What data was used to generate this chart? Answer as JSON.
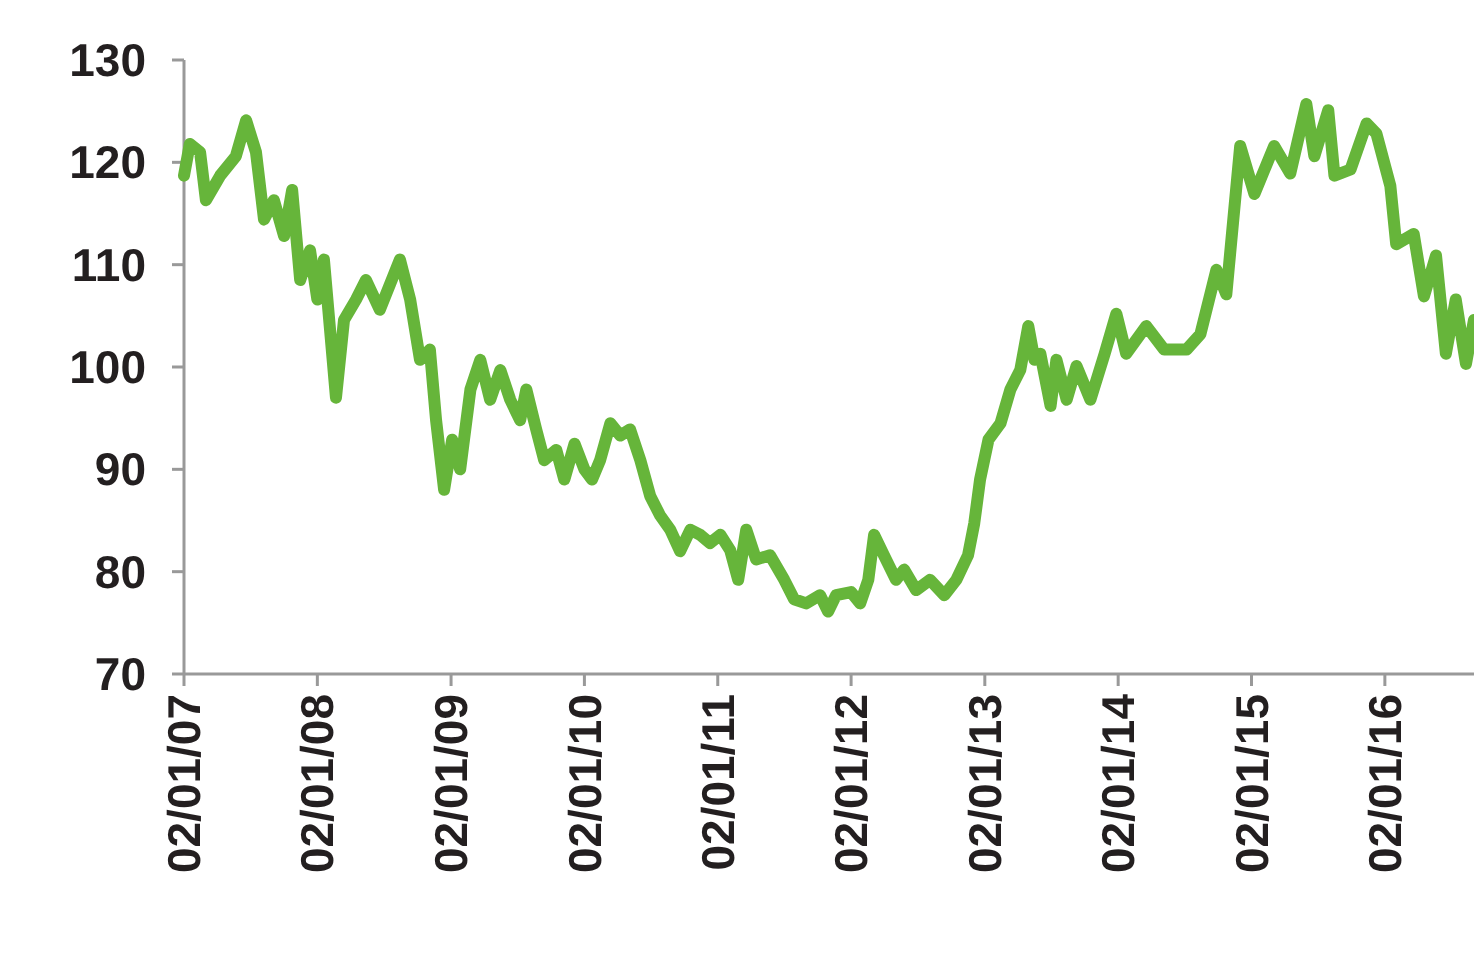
{
  "chart_data": {
    "type": "line",
    "x": [
      "2007-01-02",
      "2007-01-18",
      "2007-02-15",
      "2007-03-03",
      "2007-04-11",
      "2007-05-24",
      "2007-06-21",
      "2007-07-18",
      "2007-08-09",
      "2007-09-05",
      "2007-10-03",
      "2007-10-25",
      "2007-11-16",
      "2007-12-13",
      "2008-01-02",
      "2008-01-20",
      "2008-02-22",
      "2008-03-15",
      "2008-04-17",
      "2008-05-14",
      "2008-06-21",
      "2008-08-15",
      "2008-09-12",
      "2008-10-09",
      "2008-11-05",
      "2008-11-22",
      "2008-12-14",
      "2009-01-05",
      "2009-01-27",
      "2009-02-24",
      "2009-03-23",
      "2009-04-19",
      "2009-05-17",
      "2009-06-13",
      "2009-07-10",
      "2009-07-27",
      "2009-08-23",
      "2009-09-14",
      "2009-10-17",
      "2009-11-08",
      "2009-12-06",
      "2010-01-02",
      "2010-01-23",
      "2010-02-14",
      "2010-03-14",
      "2010-04-10",
      "2010-05-07",
      "2010-06-04",
      "2010-07-01",
      "2010-07-28",
      "2010-08-25",
      "2010-09-21",
      "2010-10-19",
      "2010-11-15",
      "2010-12-12",
      "2011-01-09",
      "2011-02-05",
      "2011-02-27",
      "2011-03-21",
      "2011-04-17",
      "2011-05-25",
      "2011-07-03",
      "2011-07-30",
      "2011-09-01",
      "2011-10-09",
      "2011-10-31",
      "2011-11-22",
      "2012-01-02",
      "2012-01-27",
      "2012-02-18",
      "2012-03-05",
      "2012-04-01",
      "2012-05-04",
      "2012-05-26",
      "2012-06-28",
      "2012-08-05",
      "2012-09-13",
      "2012-10-16",
      "2012-11-17",
      "2012-12-04",
      "2012-12-20",
      "2013-01-12",
      "2013-02-14",
      "2013-03-13",
      "2013-04-09",
      "2013-05-01",
      "2013-05-18",
      "2013-06-03",
      "2013-07-01",
      "2013-07-17",
      "2013-08-14",
      "2013-09-10",
      "2013-10-18",
      "2013-11-26",
      "2013-12-28",
      "2014-01-24",
      "2014-03-20",
      "2014-05-08",
      "2014-07-08",
      "2014-08-15",
      "2014-09-28",
      "2014-10-25",
      "2014-12-02",
      "2015-01-10",
      "2015-03-05",
      "2015-04-18",
      "2015-06-01",
      "2015-06-23",
      "2015-07-31",
      "2015-08-17",
      "2015-09-30",
      "2015-11-13",
      "2015-12-10",
      "2016-01-17",
      "2016-02-02",
      "2016-03-21",
      "2016-04-18",
      "2016-05-21",
      "2016-06-17",
      "2016-07-14",
      "2016-08-11",
      "2016-09-02"
    ],
    "series": [
      {
        "color": "#66b53a",
        "values": [
          118.7,
          121.8,
          121,
          116.3,
          118.7,
          120.6,
          124.1,
          121,
          114.4,
          116.3,
          112.8,
          117.3,
          108.5,
          111.4,
          106.6,
          110.5,
          97,
          104.6,
          106.6,
          108.5,
          105.6,
          110.5,
          106.6,
          100.7,
          101.7,
          94.8,
          88,
          92.9,
          90,
          97.8,
          100.7,
          96.8,
          99.7,
          96.8,
          94.8,
          97.8,
          93.9,
          90.9,
          91.9,
          89,
          92.5,
          90,
          89,
          90.9,
          94.5,
          93.3,
          93.9,
          90.9,
          87.4,
          85.5,
          84.1,
          82,
          84.1,
          83.6,
          82.8,
          83.6,
          82.1,
          79.2,
          84.1,
          81.2,
          81.6,
          79.2,
          77.3,
          76.9,
          77.7,
          76.1,
          77.7,
          78,
          76.9,
          79.2,
          83.6,
          81.6,
          79.2,
          80.2,
          78.2,
          79.2,
          77.7,
          79.2,
          81.6,
          84.7,
          89,
          92.9,
          94.5,
          97.8,
          99.7,
          104,
          100.7,
          101.3,
          96.2,
          100.7,
          96.8,
          100.1,
          96.8,
          101.3,
          105.2,
          101.3,
          104,
          101.7,
          101.7,
          103.2,
          109.5,
          107.1,
          121.6,
          116.9,
          121.6,
          118.9,
          125.7,
          120.6,
          125.1,
          118.7,
          119.3,
          123.8,
          122.8,
          117.7,
          112,
          113,
          106.9,
          110.9,
          101.3,
          106.6,
          100.3,
          104.6
        ]
      }
    ],
    "xlim": [
      "2007-01-02",
      "2016-09-02"
    ],
    "xticks": [
      {
        "value": "2007-01-02",
        "label": "02/01/07"
      },
      {
        "value": "2008-01-02",
        "label": "02/01/08"
      },
      {
        "value": "2009-01-02",
        "label": "02/01/09"
      },
      {
        "value": "2010-01-02",
        "label": "02/01/10"
      },
      {
        "value": "2011-01-02",
        "label": "02/01/11"
      },
      {
        "value": "2012-01-02",
        "label": "02/01/12"
      },
      {
        "value": "2013-01-02",
        "label": "02/01/13"
      },
      {
        "value": "2014-01-02",
        "label": "02/01/14"
      },
      {
        "value": "2015-01-02",
        "label": "02/01/15"
      },
      {
        "value": "2016-01-02",
        "label": "02/01/16"
      }
    ],
    "ylim": [
      70,
      130
    ],
    "yticks": [
      70,
      80,
      90,
      100,
      110,
      120,
      130
    ],
    "grid": false,
    "legend": false,
    "line_style": "solid",
    "marker": "none"
  }
}
